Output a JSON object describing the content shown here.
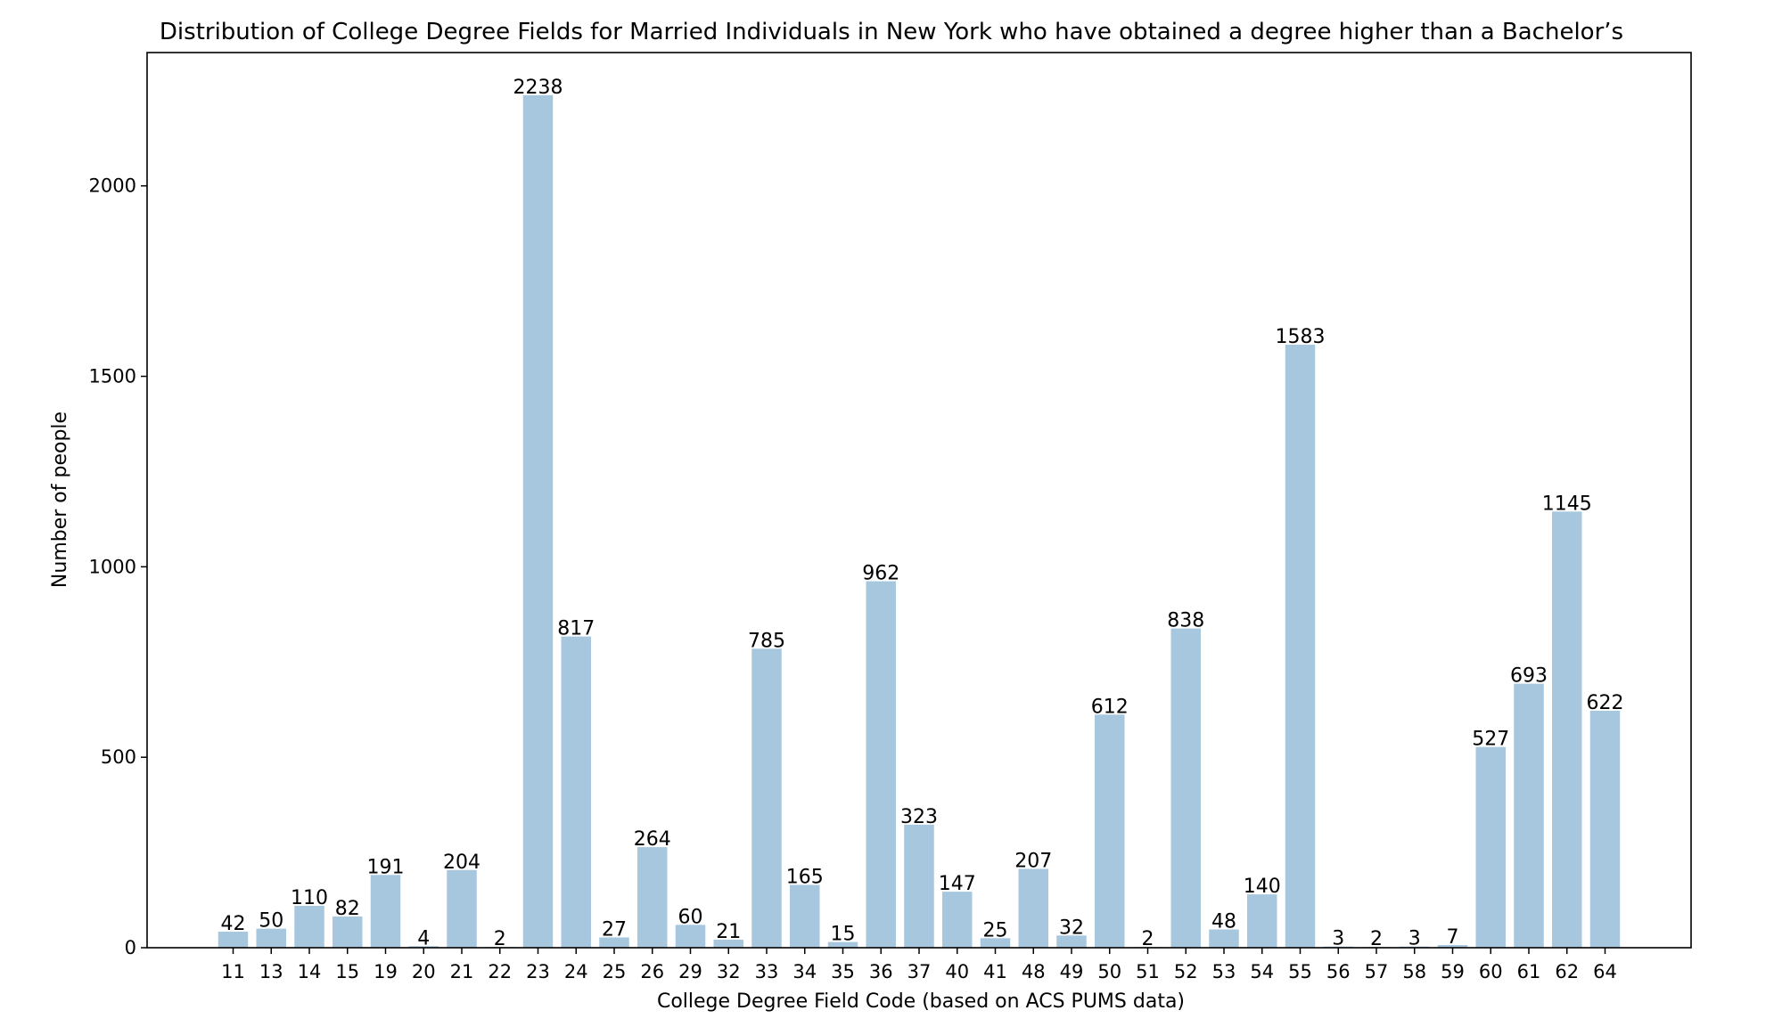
{
  "chart_data": {
    "type": "bar",
    "title": "Distribution of College Degree Fields for Married Individuals in New York who have obtained a degree higher than a Bachelor’s",
    "xlabel": "College Degree Field Code (based on ACS PUMS data)",
    "ylabel": "Number of people",
    "ylim": [
      0,
      2350
    ],
    "yticks": [
      0,
      500,
      1000,
      1500,
      2000
    ],
    "grid": false,
    "bar_color": "#a7c7de",
    "categories": [
      "11",
      "13",
      "14",
      "15",
      "19",
      "20",
      "21",
      "22",
      "23",
      "24",
      "25",
      "26",
      "29",
      "32",
      "33",
      "34",
      "35",
      "36",
      "37",
      "40",
      "41",
      "48",
      "49",
      "50",
      "51",
      "52",
      "53",
      "54",
      "55",
      "56",
      "57",
      "58",
      "59",
      "60",
      "61",
      "62",
      "64"
    ],
    "values": [
      42,
      50,
      110,
      82,
      191,
      4,
      204,
      2,
      2238,
      817,
      27,
      264,
      60,
      21,
      785,
      165,
      15,
      962,
      323,
      147,
      25,
      207,
      32,
      612,
      2,
      838,
      48,
      140,
      1583,
      3,
      2,
      3,
      7,
      527,
      693,
      1145,
      622
    ]
  }
}
